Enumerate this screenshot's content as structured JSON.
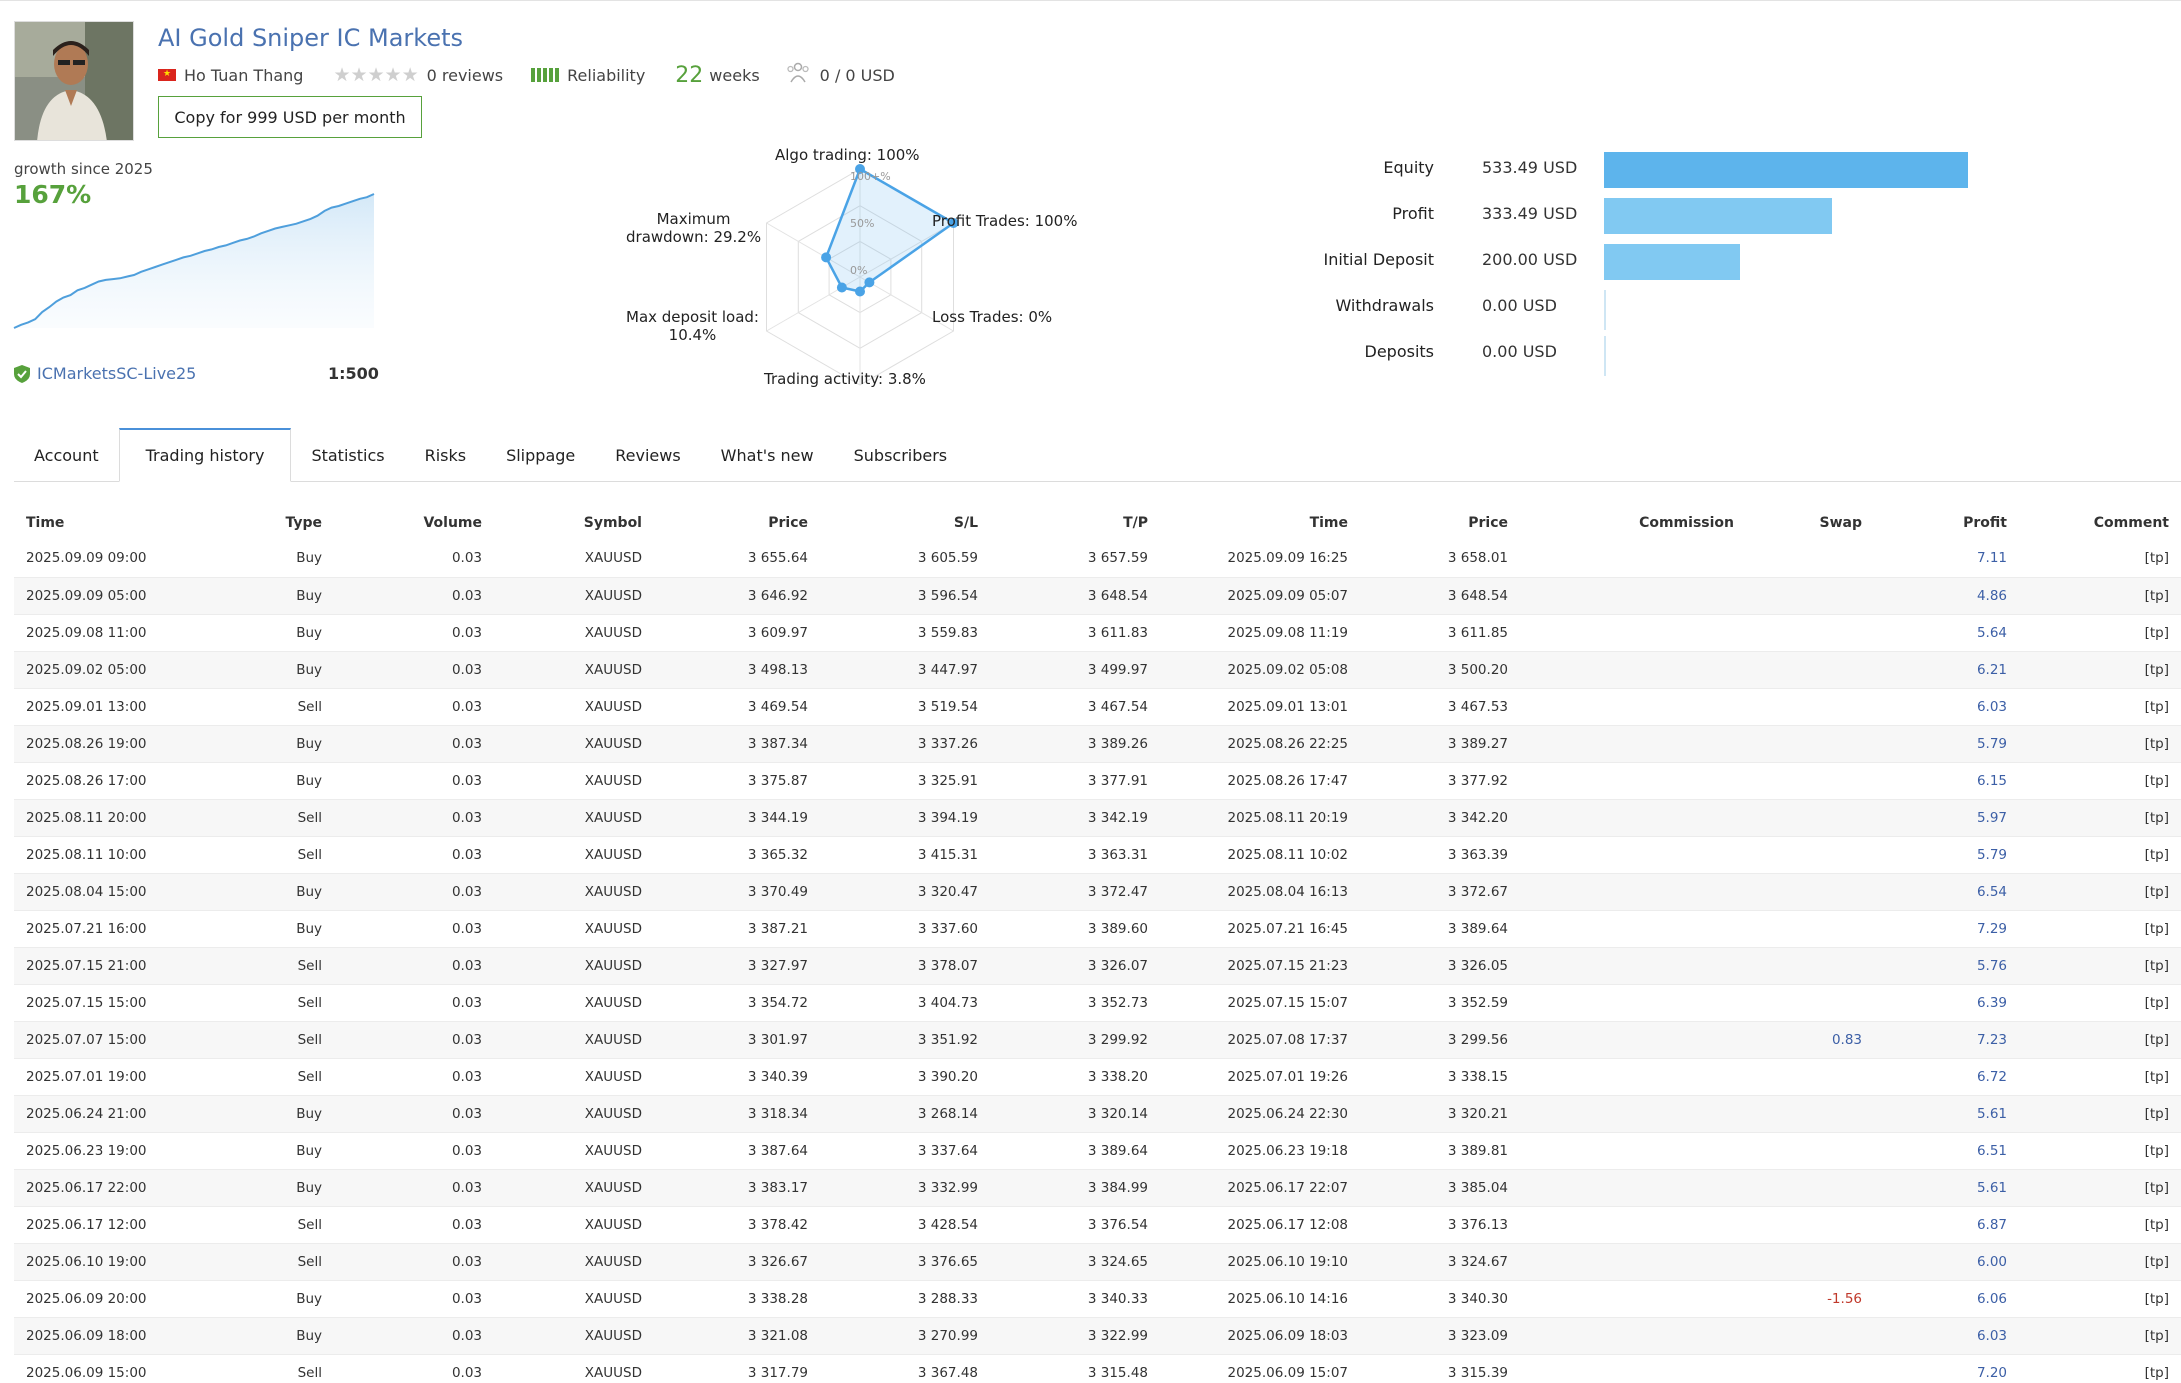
{
  "header": {
    "title": "AI Gold Sniper IC Markets",
    "author": "Ho Tuan Thang",
    "stars": "★★★★★",
    "reviews": "0 reviews",
    "reliability": "Reliability",
    "weeks_value": "22",
    "weeks_label": "weeks",
    "subscribers_value": "0 / 0 USD",
    "copy_button": "Copy for 999 USD per month"
  },
  "growth": {
    "label": "growth since 2025",
    "value": "167%",
    "server": "ICMarketsSC-Live25",
    "leverage": "1:500",
    "series": [
      0,
      4,
      7,
      11,
      20,
      26,
      33,
      38,
      41,
      47,
      50,
      54,
      58,
      60,
      61,
      62,
      64,
      66,
      70,
      73,
      76,
      79,
      82,
      85,
      88,
      90,
      93,
      96,
      98,
      101,
      103,
      106,
      109,
      111,
      114,
      118,
      121,
      124,
      126,
      128,
      130,
      133,
      136,
      140,
      146,
      150,
      152,
      155,
      158,
      161,
      163,
      167
    ]
  },
  "radar": {
    "algo": "Algo trading: 100%",
    "profit_trades": "Profit Trades: 100%",
    "loss_trades": "Loss Trades: 0%",
    "activity": "Trading activity: 3.8%",
    "deposit_load_1": "Max deposit load:",
    "deposit_load_2": "10.4%",
    "drawdown_1": "Maximum",
    "drawdown_2": "drawdown: 29.2%",
    "scale_100": "100+%",
    "scale_50": "50%",
    "scale_0": "0%",
    "values": {
      "algo": 100,
      "profit": 100,
      "loss": 0,
      "activity": 3.8,
      "load": 10.4,
      "drawdown": 29.2
    }
  },
  "summary": {
    "items": [
      {
        "label": "Equity",
        "value": "533.49 USD",
        "amount": 533.49
      },
      {
        "label": "Profit",
        "value": "333.49 USD",
        "amount": 333.49
      },
      {
        "label": "Initial Deposit",
        "value": "200.00 USD",
        "amount": 200.0
      },
      {
        "label": "Withdrawals",
        "value": "0.00 USD",
        "amount": 0
      },
      {
        "label": "Deposits",
        "value": "0.00 USD",
        "amount": 0
      }
    ],
    "colors": {
      "equity": "#5db4ec",
      "other": "#81c9f2"
    }
  },
  "tabs": [
    "Account",
    "Trading history",
    "Statistics",
    "Risks",
    "Slippage",
    "Reviews",
    "What's new",
    "Subscribers"
  ],
  "table": {
    "headers": [
      "Time",
      "Type",
      "Volume",
      "Symbol",
      "Price",
      "S/L",
      "T/P",
      "Time",
      "Price",
      "Commission",
      "Swap",
      "Profit",
      "Comment"
    ],
    "rows": [
      [
        "2025.09.09 09:00",
        "Buy",
        "0.03",
        "XAUUSD",
        "3 655.64",
        "3 605.59",
        "3 657.59",
        "2025.09.09 16:25",
        "3 658.01",
        "",
        "",
        "7.11",
        "[tp]"
      ],
      [
        "2025.09.09 05:00",
        "Buy",
        "0.03",
        "XAUUSD",
        "3 646.92",
        "3 596.54",
        "3 648.54",
        "2025.09.09 05:07",
        "3 648.54",
        "",
        "",
        "4.86",
        "[tp]"
      ],
      [
        "2025.09.08 11:00",
        "Buy",
        "0.03",
        "XAUUSD",
        "3 609.97",
        "3 559.83",
        "3 611.83",
        "2025.09.08 11:19",
        "3 611.85",
        "",
        "",
        "5.64",
        "[tp]"
      ],
      [
        "2025.09.02 05:00",
        "Buy",
        "0.03",
        "XAUUSD",
        "3 498.13",
        "3 447.97",
        "3 499.97",
        "2025.09.02 05:08",
        "3 500.20",
        "",
        "",
        "6.21",
        "[tp]"
      ],
      [
        "2025.09.01 13:00",
        "Sell",
        "0.03",
        "XAUUSD",
        "3 469.54",
        "3 519.54",
        "3 467.54",
        "2025.09.01 13:01",
        "3 467.53",
        "",
        "",
        "6.03",
        "[tp]"
      ],
      [
        "2025.08.26 19:00",
        "Buy",
        "0.03",
        "XAUUSD",
        "3 387.34",
        "3 337.26",
        "3 389.26",
        "2025.08.26 22:25",
        "3 389.27",
        "",
        "",
        "5.79",
        "[tp]"
      ],
      [
        "2025.08.26 17:00",
        "Buy",
        "0.03",
        "XAUUSD",
        "3 375.87",
        "3 325.91",
        "3 377.91",
        "2025.08.26 17:47",
        "3 377.92",
        "",
        "",
        "6.15",
        "[tp]"
      ],
      [
        "2025.08.11 20:00",
        "Sell",
        "0.03",
        "XAUUSD",
        "3 344.19",
        "3 394.19",
        "3 342.19",
        "2025.08.11 20:19",
        "3 342.20",
        "",
        "",
        "5.97",
        "[tp]"
      ],
      [
        "2025.08.11 10:00",
        "Sell",
        "0.03",
        "XAUUSD",
        "3 365.32",
        "3 415.31",
        "3 363.31",
        "2025.08.11 10:02",
        "3 363.39",
        "",
        "",
        "5.79",
        "[tp]"
      ],
      [
        "2025.08.04 15:00",
        "Buy",
        "0.03",
        "XAUUSD",
        "3 370.49",
        "3 320.47",
        "3 372.47",
        "2025.08.04 16:13",
        "3 372.67",
        "",
        "",
        "6.54",
        "[tp]"
      ],
      [
        "2025.07.21 16:00",
        "Buy",
        "0.03",
        "XAUUSD",
        "3 387.21",
        "3 337.60",
        "3 389.60",
        "2025.07.21 16:45",
        "3 389.64",
        "",
        "",
        "7.29",
        "[tp]"
      ],
      [
        "2025.07.15 21:00",
        "Sell",
        "0.03",
        "XAUUSD",
        "3 327.97",
        "3 378.07",
        "3 326.07",
        "2025.07.15 21:23",
        "3 326.05",
        "",
        "",
        "5.76",
        "[tp]"
      ],
      [
        "2025.07.15 15:00",
        "Sell",
        "0.03",
        "XAUUSD",
        "3 354.72",
        "3 404.73",
        "3 352.73",
        "2025.07.15 15:07",
        "3 352.59",
        "",
        "",
        "6.39",
        "[tp]"
      ],
      [
        "2025.07.07 15:00",
        "Sell",
        "0.03",
        "XAUUSD",
        "3 301.97",
        "3 351.92",
        "3 299.92",
        "2025.07.08 17:37",
        "3 299.56",
        "",
        "0.83",
        "7.23",
        "[tp]"
      ],
      [
        "2025.07.01 19:00",
        "Sell",
        "0.03",
        "XAUUSD",
        "3 340.39",
        "3 390.20",
        "3 338.20",
        "2025.07.01 19:26",
        "3 338.15",
        "",
        "",
        "6.72",
        "[tp]"
      ],
      [
        "2025.06.24 21:00",
        "Buy",
        "0.03",
        "XAUUSD",
        "3 318.34",
        "3 268.14",
        "3 320.14",
        "2025.06.24 22:30",
        "3 320.21",
        "",
        "",
        "5.61",
        "[tp]"
      ],
      [
        "2025.06.23 19:00",
        "Buy",
        "0.03",
        "XAUUSD",
        "3 387.64",
        "3 337.64",
        "3 389.64",
        "2025.06.23 19:18",
        "3 389.81",
        "",
        "",
        "6.51",
        "[tp]"
      ],
      [
        "2025.06.17 22:00",
        "Buy",
        "0.03",
        "XAUUSD",
        "3 383.17",
        "3 332.99",
        "3 384.99",
        "2025.06.17 22:07",
        "3 385.04",
        "",
        "",
        "5.61",
        "[tp]"
      ],
      [
        "2025.06.17 12:00",
        "Sell",
        "0.03",
        "XAUUSD",
        "3 378.42",
        "3 428.54",
        "3 376.54",
        "2025.06.17 12:08",
        "3 376.13",
        "",
        "",
        "6.87",
        "[tp]"
      ],
      [
        "2025.06.10 19:00",
        "Sell",
        "0.03",
        "XAUUSD",
        "3 326.67",
        "3 376.65",
        "3 324.65",
        "2025.06.10 19:10",
        "3 324.67",
        "",
        "",
        "6.00",
        "[tp]"
      ],
      [
        "2025.06.09 20:00",
        "Buy",
        "0.03",
        "XAUUSD",
        "3 338.28",
        "3 288.33",
        "3 340.33",
        "2025.06.10 14:16",
        "3 340.30",
        "",
        "-1.56",
        "6.06",
        "[tp]"
      ],
      [
        "2025.06.09 18:00",
        "Buy",
        "0.03",
        "XAUUSD",
        "3 321.08",
        "3 270.99",
        "3 322.99",
        "2025.06.09 18:03",
        "3 323.09",
        "",
        "",
        "6.03",
        "[tp]"
      ],
      [
        "2025.06.09 15:00",
        "Sell",
        "0.03",
        "XAUUSD",
        "3 317.79",
        "3 367.48",
        "3 315.48",
        "2025.06.09 15:07",
        "3 315.39",
        "",
        "",
        "7.20",
        "[tp]"
      ]
    ]
  }
}
